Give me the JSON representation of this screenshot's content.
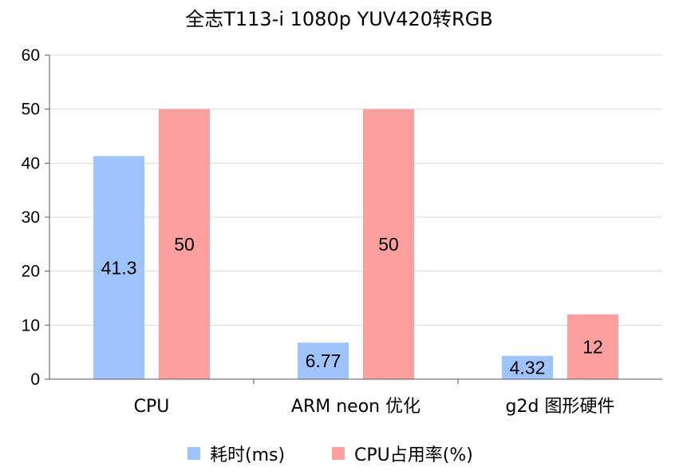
{
  "chart_data": {
    "type": "bar",
    "title": "全志T113-i 1080p YUV420转RGB",
    "categories": [
      "CPU",
      "ARM neon 优化",
      "g2d 图形硬件"
    ],
    "series": [
      {
        "name": "耗时(ms)",
        "color": "#9fc3fc",
        "values": [
          41.3,
          6.77,
          4.32
        ],
        "labels": [
          "41.3",
          "6.77",
          "4.32"
        ]
      },
      {
        "name": "CPU占用率(%)",
        "color": "#fd9f9e",
        "values": [
          50,
          50,
          12
        ],
        "labels": [
          "50",
          "50",
          "12"
        ]
      }
    ],
    "ylim": [
      0,
      60
    ],
    "yticks": [
      "0",
      "10",
      "20",
      "30",
      "40",
      "50",
      "60"
    ],
    "grid": true,
    "legend": "bottom"
  }
}
